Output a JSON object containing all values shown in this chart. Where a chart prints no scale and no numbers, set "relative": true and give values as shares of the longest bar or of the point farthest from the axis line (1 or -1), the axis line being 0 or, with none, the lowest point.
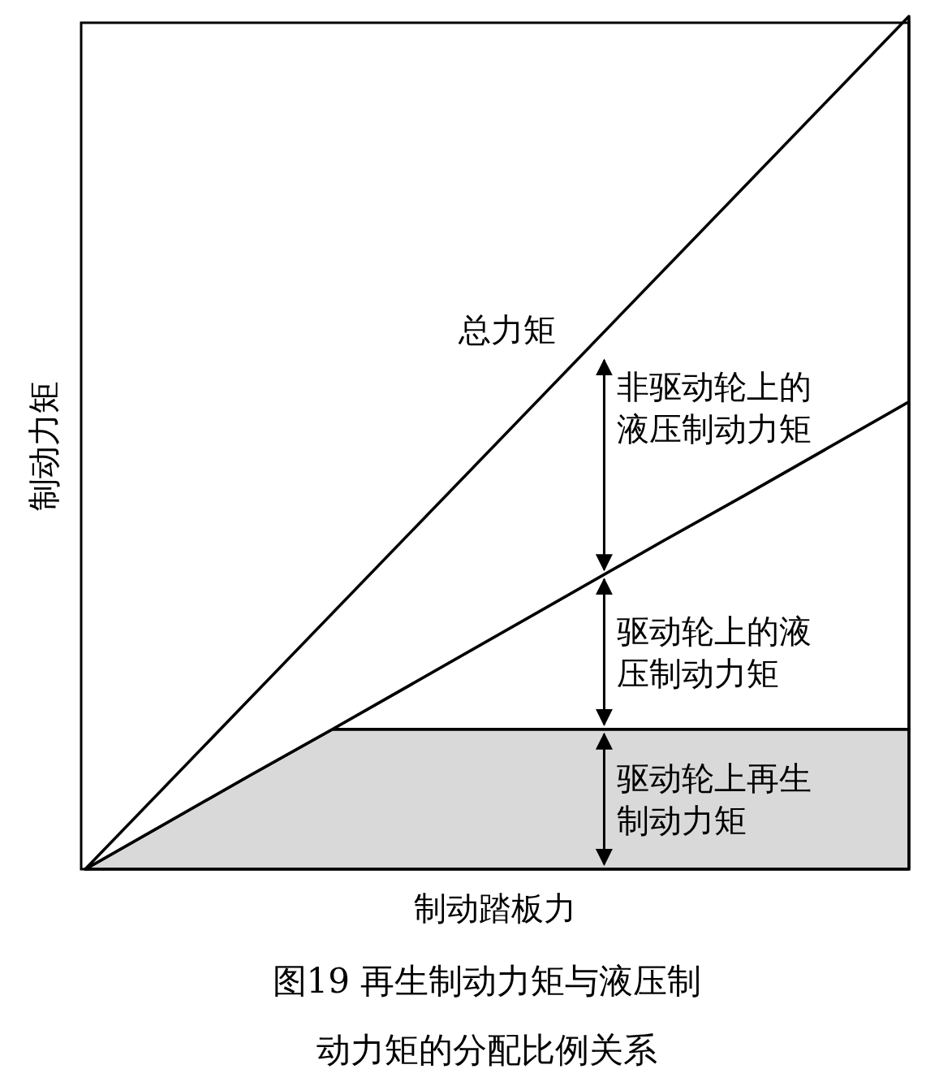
{
  "chart_data": {
    "type": "area",
    "stacked": true,
    "relative": true,
    "title": "图19 再生制动力矩与液压制动力矩的分配比例关系",
    "xlabel": "制动踏板力",
    "ylabel": "制动力矩",
    "annotations": [
      "总力矩"
    ],
    "categories": [
      null,
      null,
      null,
      null,
      null,
      null,
      null,
      null,
      null,
      null,
      null
    ],
    "series": [
      {
        "name": "驱动轮上再生制动力矩",
        "color": "#d9d9d9",
        "values": [
          0,
          0.055,
          0.11,
          0.164,
          0.164,
          0.164,
          0.164,
          0.164,
          0.164,
          0.164,
          0.164
        ]
      },
      {
        "name": "驱动轮上的液压制动力矩",
        "color": "#ffffff",
        "values": [
          0,
          0,
          0,
          0,
          0.055,
          0.11,
          0.165,
          0.22,
          0.274,
          0.329,
          0.384
        ]
      },
      {
        "name": "非驱动轮上的液压制动力矩",
        "color": "#ffffff",
        "values": [
          0,
          0.045,
          0.09,
          0.136,
          0.181,
          0.226,
          0.271,
          0.316,
          0.362,
          0.407,
          0.452
        ]
      }
    ]
  }
}
